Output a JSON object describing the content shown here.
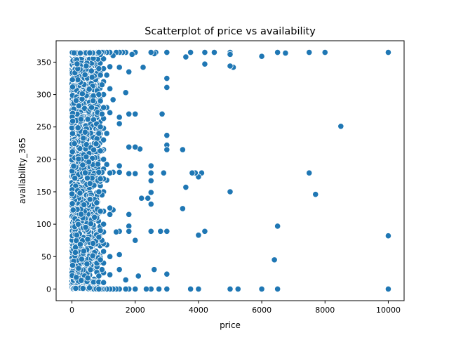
{
  "chart_data": {
    "type": "scatter",
    "title": "Scatterplot of price vs availability",
    "xlabel": "price",
    "ylabel": "availability_365",
    "xlim": [
      -500,
      10500
    ],
    "ylim": [
      -18,
      383
    ],
    "x_ticks": [
      0,
      2000,
      4000,
      6000,
      8000,
      10000
    ],
    "y_ticks": [
      0,
      50,
      100,
      150,
      200,
      250,
      300,
      350
    ],
    "grid": false,
    "legend": "none",
    "marker_color": "#1f77b4",
    "series": [
      {
        "points": [
          [
            10000,
            365
          ],
          [
            10000,
            82
          ],
          [
            10000,
            0
          ],
          [
            8500,
            251
          ],
          [
            8000,
            365
          ],
          [
            7700,
            146
          ],
          [
            7500,
            365
          ],
          [
            7500,
            179
          ],
          [
            6750,
            364
          ],
          [
            6500,
            365
          ],
          [
            6500,
            97
          ],
          [
            6500,
            0
          ],
          [
            6400,
            45
          ],
          [
            6000,
            359
          ],
          [
            6000,
            0
          ],
          [
            5250,
            0
          ],
          [
            5100,
            342
          ],
          [
            5000,
            365
          ],
          [
            5000,
            362
          ],
          [
            5000,
            344
          ],
          [
            5000,
            150
          ],
          [
            5000,
            0
          ],
          [
            4500,
            365
          ],
          [
            4200,
            365
          ],
          [
            4200,
            347
          ],
          [
            4200,
            89
          ],
          [
            4100,
            179
          ],
          [
            4000,
            173
          ],
          [
            4000,
            83
          ],
          [
            4000,
            0
          ],
          [
            3900,
            179
          ],
          [
            3800,
            179
          ],
          [
            3750,
            365
          ],
          [
            3750,
            0
          ],
          [
            3600,
            358
          ],
          [
            3600,
            157
          ],
          [
            3500,
            215
          ],
          [
            3500,
            124
          ],
          [
            3000,
            365
          ],
          [
            3000,
            325
          ],
          [
            3000,
            311
          ],
          [
            3000,
            237
          ],
          [
            3000,
            222
          ],
          [
            3000,
            215
          ],
          [
            3000,
            89
          ],
          [
            3000,
            23
          ],
          [
            3000,
            0
          ],
          [
            2900,
            179
          ],
          [
            2850,
            270
          ],
          [
            2800,
            89
          ],
          [
            2750,
            0
          ],
          [
            2650,
            365
          ],
          [
            2600,
            363
          ],
          [
            2600,
            30
          ],
          [
            2500,
            365
          ],
          [
            2500,
            190
          ],
          [
            2500,
            179
          ],
          [
            2500,
            167
          ],
          [
            2500,
            149
          ],
          [
            2500,
            131
          ],
          [
            2500,
            89
          ],
          [
            2500,
            0
          ],
          [
            2400,
            140
          ],
          [
            2350,
            0
          ],
          [
            2250,
            342
          ],
          [
            2200,
            140
          ],
          [
            2150,
            216
          ],
          [
            2100,
            20
          ],
          [
            2000,
            365
          ],
          [
            2000,
            270
          ],
          [
            2000,
            219
          ],
          [
            2000,
            178
          ],
          [
            2000,
            75
          ],
          [
            2000,
            0
          ],
          [
            1900,
            362
          ],
          [
            1800,
            335
          ],
          [
            1800,
            270
          ],
          [
            1800,
            219
          ],
          [
            1800,
            178
          ],
          [
            1800,
            115
          ],
          [
            1800,
            97
          ],
          [
            1800,
            89
          ],
          [
            1800,
            0
          ],
          [
            1700,
            365
          ],
          [
            1700,
            303
          ],
          [
            1700,
            14
          ],
          [
            1700,
            0
          ],
          [
            1600,
            365
          ],
          [
            1500,
            365
          ],
          [
            1500,
            342
          ],
          [
            1500,
            265
          ],
          [
            1500,
            255
          ],
          [
            1500,
            190
          ],
          [
            1500,
            180
          ],
          [
            1500,
            89
          ],
          [
            1500,
            53
          ],
          [
            1500,
            30
          ],
          [
            1500,
            0
          ],
          [
            1400,
            365
          ],
          [
            1400,
            88
          ],
          [
            1400,
            0
          ],
          [
            1300,
            360
          ],
          [
            1300,
            292
          ],
          [
            1300,
            180
          ],
          [
            1300,
            122
          ],
          [
            1300,
            0
          ],
          [
            1200,
            365
          ],
          [
            1200,
            343
          ],
          [
            1200,
            309
          ],
          [
            1200,
            272
          ],
          [
            1200,
            179
          ],
          [
            1200,
            125
          ],
          [
            1200,
            115
          ],
          [
            1200,
            50
          ],
          [
            1200,
            22
          ],
          [
            1200,
            0
          ],
          [
            1100,
            365
          ],
          [
            1100,
            330
          ],
          [
            1100,
            280
          ],
          [
            1100,
            240
          ],
          [
            1100,
            192
          ],
          [
            1100,
            168
          ],
          [
            1100,
            68
          ],
          [
            1100,
            0
          ],
          [
            1000,
            365
          ],
          [
            1000,
            355
          ],
          [
            1000,
            340
          ],
          [
            1000,
            320
          ],
          [
            1000,
            300
          ],
          [
            1000,
            280
          ],
          [
            1000,
            263
          ],
          [
            1000,
            248
          ],
          [
            1000,
            230
          ],
          [
            1000,
            215
          ],
          [
            1000,
            200
          ],
          [
            1000,
            185
          ],
          [
            1000,
            170
          ],
          [
            1000,
            150
          ],
          [
            1000,
            120
          ],
          [
            1000,
            100
          ],
          [
            1000,
            88
          ],
          [
            1000,
            70
          ],
          [
            1000,
            58
          ],
          [
            1000,
            40
          ],
          [
            1000,
            25
          ],
          [
            1000,
            10
          ],
          [
            1000,
            0
          ],
          [
            950,
            365
          ],
          [
            950,
            315
          ],
          [
            950,
            270
          ],
          [
            950,
            213
          ],
          [
            950,
            180
          ],
          [
            950,
            145
          ],
          [
            950,
            75
          ],
          [
            950,
            30
          ],
          [
            950,
            0
          ],
          [
            900,
            362
          ],
          [
            900,
            330
          ],
          [
            900,
            290
          ],
          [
            900,
            250
          ],
          [
            900,
            213
          ],
          [
            900,
            170
          ],
          [
            900,
            120
          ],
          [
            900,
            90
          ],
          [
            900,
            45
          ],
          [
            900,
            0
          ],
          [
            850,
            365
          ],
          [
            850,
            340
          ],
          [
            850,
            300
          ],
          [
            850,
            240
          ],
          [
            850,
            180
          ],
          [
            850,
            150
          ],
          [
            850,
            80
          ],
          [
            850,
            20
          ],
          [
            850,
            0
          ]
        ]
      }
    ]
  }
}
